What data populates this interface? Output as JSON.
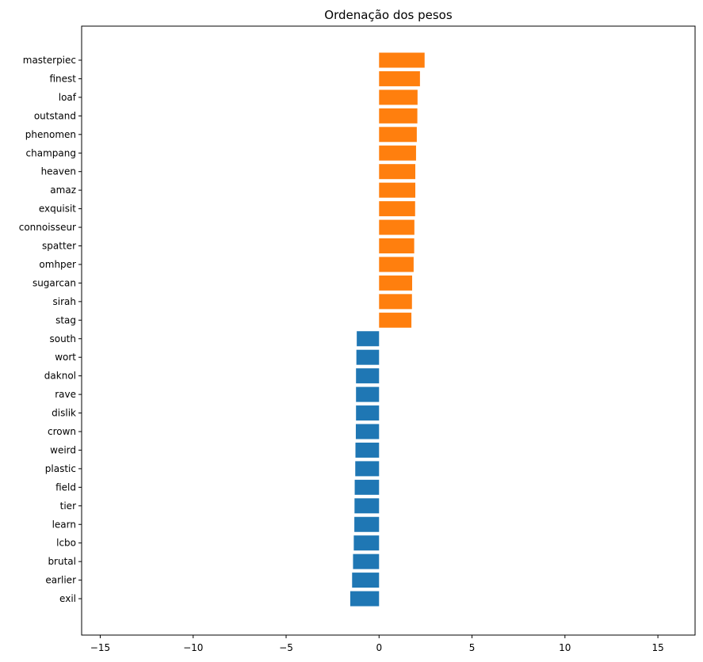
{
  "chart_data": {
    "type": "bar",
    "orientation": "horizontal",
    "title": "Ordenação dos pesos",
    "xlabel": "",
    "ylabel": "",
    "xlim": [
      -16,
      17
    ],
    "xticks": [
      -15,
      -10,
      -5,
      0,
      5,
      10,
      15
    ],
    "xtick_labels": [
      "−15",
      "−10",
      "−5",
      "0",
      "5",
      "10",
      "15"
    ],
    "grid": false,
    "colors": {
      "positive": "#ff7f0e",
      "negative": "#1f77b4"
    },
    "categories": [
      "masterpiec",
      "finest",
      "loaf",
      "outstand",
      "phenomen",
      "champang",
      "heaven",
      "amaz",
      "exquisit",
      "connoisseur",
      "spatter",
      "omhper",
      "sugarcan",
      "sirah",
      "stag",
      "south",
      "wort",
      "daknol",
      "rave",
      "dislik",
      "crown",
      "weird",
      "plastic",
      "field",
      "tier",
      "learn",
      "lcbo",
      "brutal",
      "earlier",
      "exil"
    ],
    "values": [
      2.45,
      2.2,
      2.07,
      2.06,
      2.03,
      1.99,
      1.95,
      1.95,
      1.94,
      1.9,
      1.89,
      1.86,
      1.78,
      1.77,
      1.74,
      -1.2,
      -1.22,
      -1.24,
      -1.24,
      -1.24,
      -1.25,
      -1.27,
      -1.28,
      -1.31,
      -1.32,
      -1.33,
      -1.36,
      -1.4,
      -1.45,
      -1.55
    ]
  }
}
